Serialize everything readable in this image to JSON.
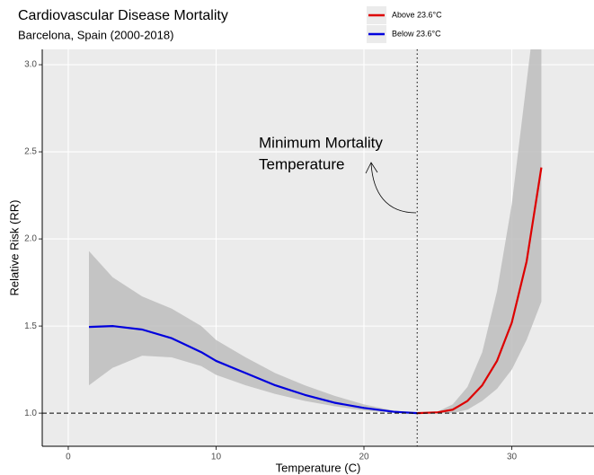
{
  "chart_data": {
    "type": "line",
    "title": "Cardiovascular Disease Mortality",
    "subtitle": "Barcelona, Spain (2000-2018)",
    "xlabel": "Temperature (C)",
    "ylabel": "Relative Risk (RR)",
    "annotation": [
      "Minimum Mortality",
      "Temperature"
    ],
    "vline": 23.6,
    "hline": 1.0,
    "xlim": [
      -1.76,
      35.56
    ],
    "ylim": [
      0.81,
      3.088
    ],
    "xticks": [
      0,
      10,
      20,
      30
    ],
    "yticks": [
      {
        "value": 1.0,
        "label": "1.0"
      },
      {
        "value": 1.5,
        "label": "1.5"
      },
      {
        "value": 2.0,
        "label": "2.0"
      },
      {
        "value": 2.5,
        "label": "2.5"
      },
      {
        "value": 3.0,
        "label": "3.0"
      }
    ],
    "grid": true,
    "series": [
      {
        "name": "Above 23.6°C",
        "color": "#dd0000",
        "x": [
          23.6,
          25,
          26,
          27,
          28,
          29,
          30,
          31,
          32
        ],
        "values": [
          1.0,
          1.005,
          1.02,
          1.07,
          1.16,
          1.3,
          1.52,
          1.87,
          2.41
        ],
        "lower": [
          1.0,
          1.0,
          1.0,
          1.02,
          1.07,
          1.14,
          1.25,
          1.42,
          1.64
        ],
        "upper": [
          1.0,
          1.01,
          1.05,
          1.15,
          1.35,
          1.7,
          2.2,
          2.9,
          3.6
        ]
      },
      {
        "name": "Below 23.6°C",
        "color": "#0000dd",
        "x": [
          1.4,
          3,
          5,
          7,
          9,
          10,
          12,
          14,
          16,
          18,
          20,
          22,
          23.6
        ],
        "values": [
          1.495,
          1.5,
          1.48,
          1.43,
          1.35,
          1.3,
          1.23,
          1.16,
          1.105,
          1.06,
          1.03,
          1.008,
          1.0
        ],
        "lower": [
          1.16,
          1.26,
          1.33,
          1.32,
          1.27,
          1.22,
          1.16,
          1.11,
          1.07,
          1.04,
          1.015,
          1.003,
          1.0
        ],
        "upper": [
          1.93,
          1.78,
          1.67,
          1.6,
          1.5,
          1.42,
          1.32,
          1.23,
          1.16,
          1.1,
          1.05,
          1.015,
          1.0
        ]
      }
    ]
  }
}
